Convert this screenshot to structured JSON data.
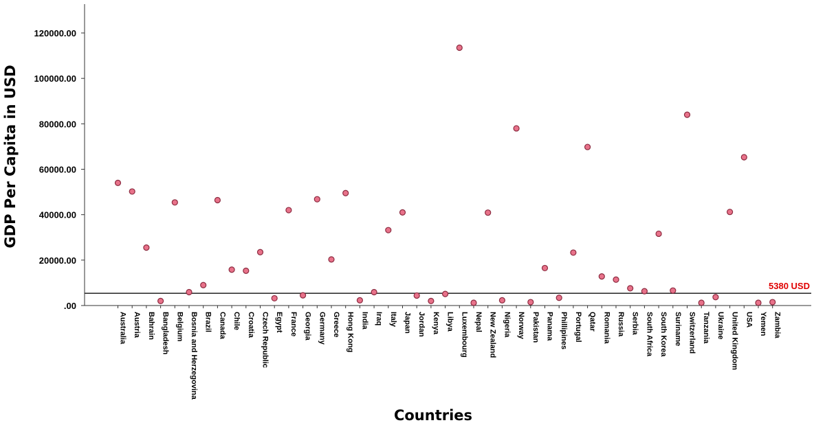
{
  "chart_data": {
    "type": "scatter",
    "xlabel": "Countries",
    "ylabel": "GDP Per Capita in USD",
    "ylim": [
      0,
      130000
    ],
    "yticks": [
      0,
      20000,
      40000,
      60000,
      80000,
      100000,
      120000
    ],
    "ytick_labels": [
      ".00",
      "20000.00",
      "40000.00",
      "60000.00",
      "80000.00",
      "100000.00",
      "120000.00"
    ],
    "grid": false,
    "reference_line": {
      "value": 5380,
      "label": "5380 USD",
      "color": "#e00000"
    },
    "marker_fill": "#e8728a",
    "marker_stroke": "#8b2a3f",
    "categories": [
      "Australia",
      "Austria",
      "Bahrain",
      "Bangladesh",
      "Belgium",
      "Bosnia and Herzegovina",
      "Brazil",
      "Canada",
      "Chile",
      "Croatia",
      "Czech Republic",
      "Egypt",
      "France",
      "Georgia",
      "Germany",
      "Greece",
      "Hong Kong",
      "India",
      "Iraq",
      "Italy",
      "Japan",
      "Jordan",
      "Kenya",
      "Libya",
      "Luxembourg",
      "Nepal",
      "New Zealand",
      "Nigeria",
      "Norway",
      "Pakistan",
      "Panama",
      "Phillipines",
      "Portugal",
      "Qatar",
      "Romania",
      "Russia",
      "Serbia",
      "South Africa",
      "South Korea",
      "Suriname",
      "Switzerland",
      "Tanzania",
      "Ukraine",
      "United Kingdom",
      "USA",
      "Yemen",
      "Zambia"
    ],
    "values": [
      54000,
      50200,
      25500,
      2000,
      45400,
      5900,
      9000,
      46400,
      15800,
      15300,
      23500,
      3200,
      42000,
      4500,
      46800,
      20300,
      49500,
      2300,
      5900,
      33200,
      41000,
      4400,
      2000,
      5100,
      113500,
      1200,
      40900,
      2300,
      78000,
      1500,
      16500,
      3400,
      23300,
      69800,
      12800,
      11400,
      7600,
      6300,
      31600,
      6600,
      84000,
      1200,
      3700,
      41200,
      65300,
      1200,
      1500
    ]
  }
}
